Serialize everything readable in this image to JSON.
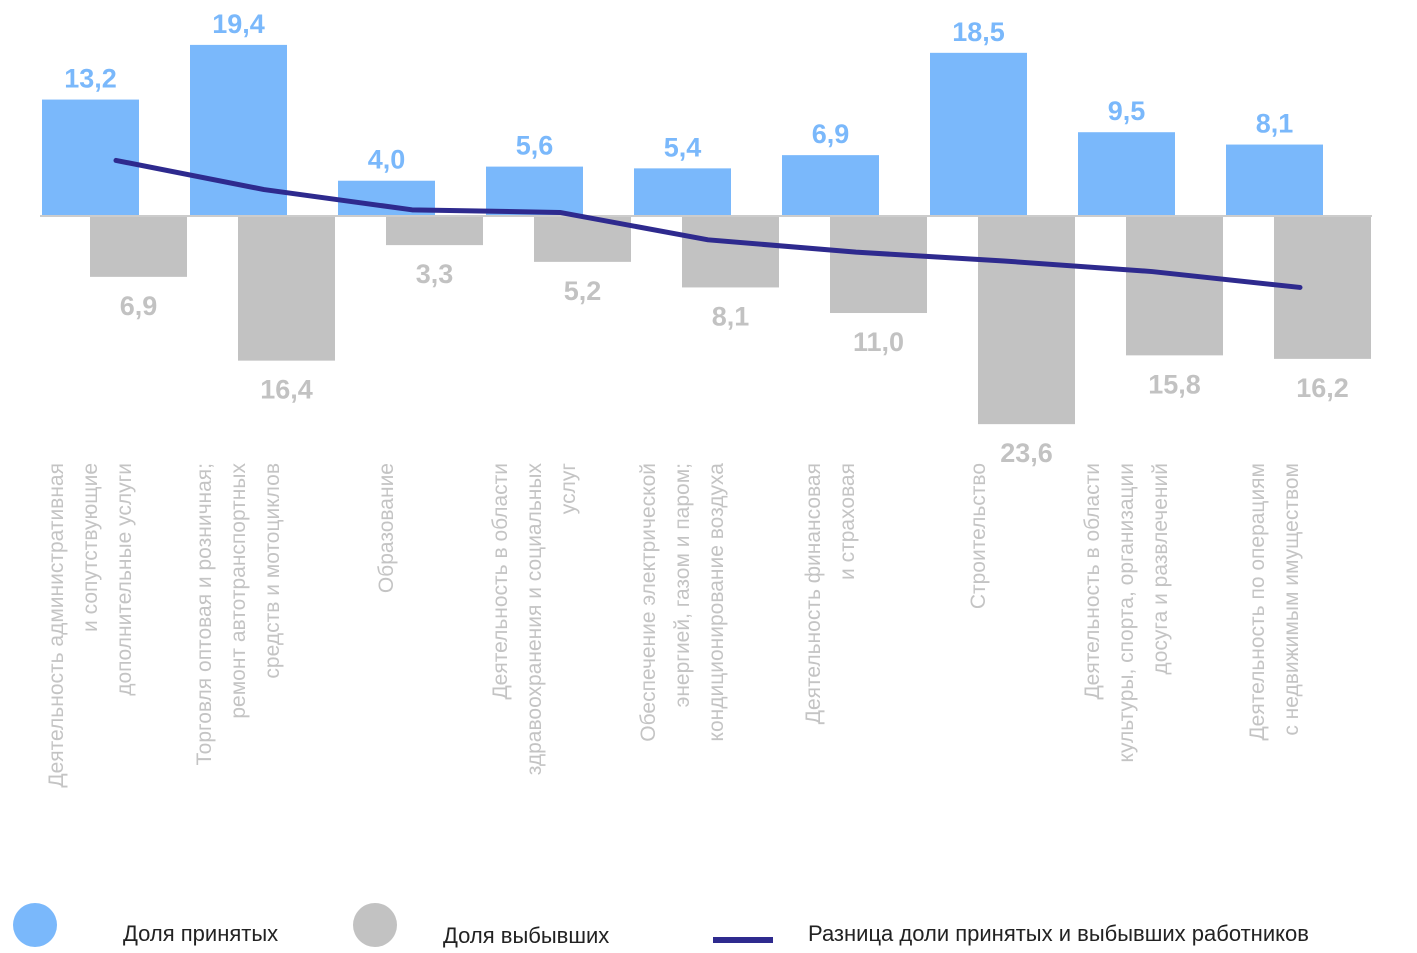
{
  "chart_data": {
    "type": "bar",
    "categories": [
      [
        "Деятельность административная",
        "и сопутствующие",
        "дополнительные услуги"
      ],
      [
        "Торговля оптовая и розничная;",
        "ремонт автотранспортных",
        "средств и мотоциклов"
      ],
      [
        "Образование"
      ],
      [
        "Деятельность в области",
        "здравоохранения и социальных",
        "услуг"
      ],
      [
        "Обеспечение электрической",
        "энергией, газом и паром;",
        "кондиционирование воздуха"
      ],
      [
        "Деятельность финансовая",
        "и страховая"
      ],
      [
        "Строительство"
      ],
      [
        "Деятельность в области",
        "культуры, спорта, организации",
        "досуга и развлечений"
      ],
      [
        "Деятельность по операциям",
        "с недвижимым имуществом"
      ]
    ],
    "series": [
      {
        "name": "Доля принятых",
        "values": [
          13.2,
          19.4,
          4.0,
          5.6,
          5.4,
          6.9,
          18.5,
          9.5,
          8.1
        ],
        "labels": [
          "13,2",
          "19,4",
          "4,0",
          "5,6",
          "5,4",
          "6,9",
          "18,5",
          "9,5",
          "8,1"
        ],
        "color": "#7ab8fb"
      },
      {
        "name": "Доля выбывших",
        "values": [
          -6.9,
          -16.4,
          -3.3,
          -5.2,
          -8.1,
          -11.0,
          -23.6,
          -15.8,
          -16.2
        ],
        "labels": [
          "6,9",
          "16,4",
          "3,3",
          "5,2",
          "8,1",
          "11,0",
          "23,6",
          "15,8",
          "16,2"
        ],
        "color": "#c2c2c2"
      },
      {
        "name": "Разница доли принятых и выбывших работников",
        "type": "line",
        "values": [
          6.3,
          3.0,
          0.7,
          0.4,
          -2.7,
          -4.1,
          -5.1,
          -6.3,
          -8.1
        ],
        "color": "#2e2a8e"
      }
    ],
    "legend_position": "bottom",
    "grid": false
  }
}
